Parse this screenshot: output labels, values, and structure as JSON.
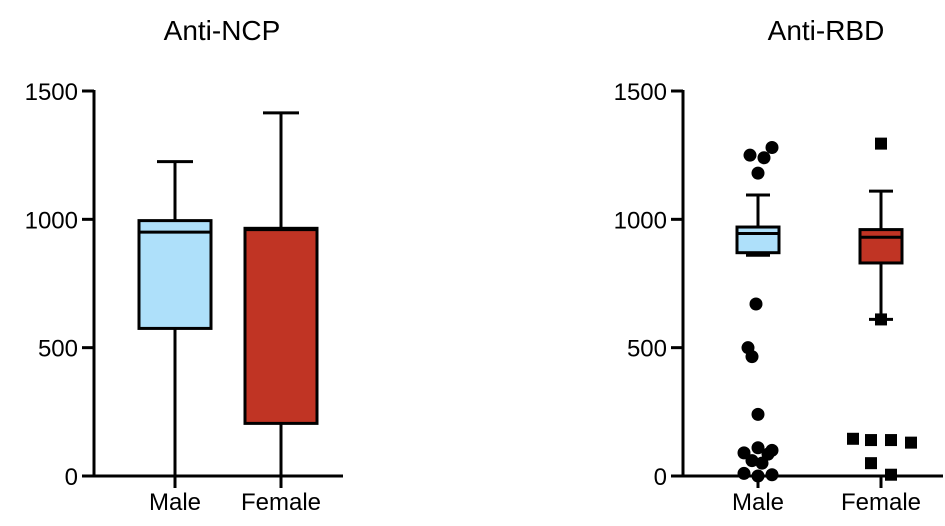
{
  "chart_data": [
    {
      "type": "box",
      "title": "Anti-NCP",
      "ylim": [
        0,
        1500
      ],
      "yticks": [
        0,
        500,
        1000,
        1500
      ],
      "categories": [
        "Male",
        "Female"
      ],
      "colors": [
        "#aee0fa",
        "#c03424"
      ],
      "boxes": [
        {
          "category": "Male",
          "whisker_low": 0,
          "q1": 575,
          "median": 950,
          "q3": 995,
          "whisker_high": 1225,
          "outliers": []
        },
        {
          "category": "Female",
          "whisker_low": 0,
          "q1": 205,
          "median": 960,
          "q3": 965,
          "whisker_high": 1415,
          "outliers": []
        }
      ]
    },
    {
      "type": "box",
      "title": "Anti-RBD",
      "ylim": [
        0,
        1500
      ],
      "yticks": [
        0,
        500,
        1000,
        1500
      ],
      "categories": [
        "Male",
        "Female"
      ],
      "colors": [
        "#aee0fa",
        "#c03424"
      ],
      "boxes": [
        {
          "category": "Male",
          "whisker_low": 860,
          "q1": 870,
          "median": 945,
          "q3": 970,
          "whisker_high": 1095,
          "marker": "circle",
          "outliers": [
            1280,
            1250,
            1240,
            1180,
            670,
            500,
            465,
            240,
            110,
            100,
            90,
            85,
            60,
            50,
            10,
            5,
            0
          ]
        },
        {
          "category": "Female",
          "whisker_low": 610,
          "q1": 830,
          "median": 930,
          "q3": 960,
          "whisker_high": 1110,
          "marker": "square",
          "outliers": [
            1295,
            610,
            145,
            140,
            140,
            130,
            50,
            5
          ]
        }
      ]
    }
  ]
}
